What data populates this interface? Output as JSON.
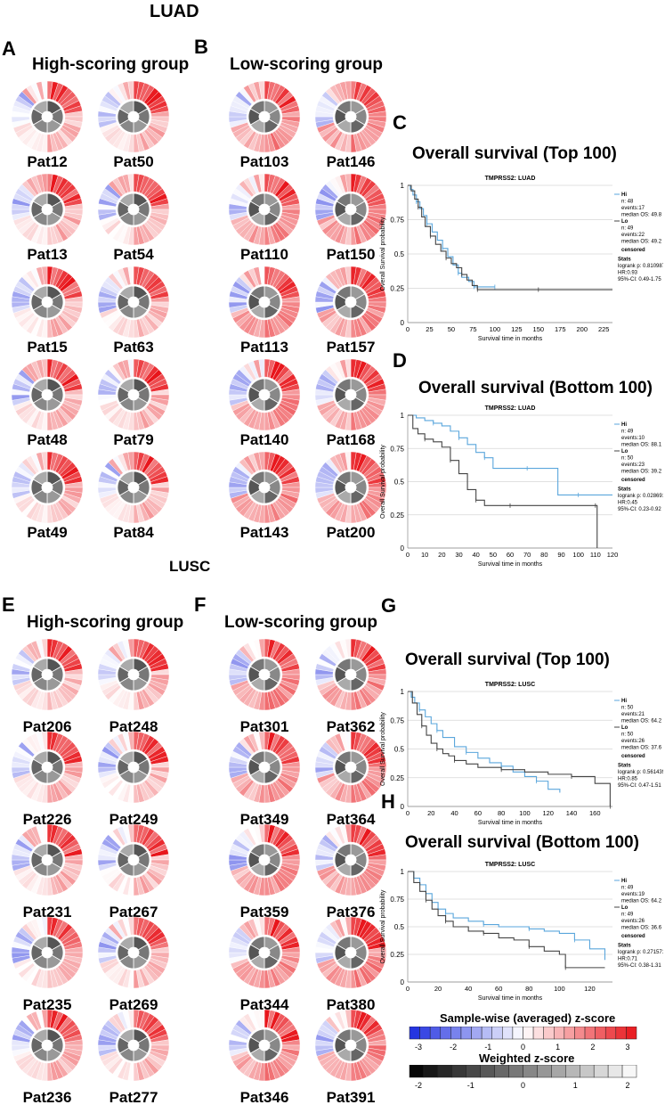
{
  "sections": [
    {
      "id": "luad",
      "title": "LUAD"
    },
    {
      "id": "lusc",
      "title": "LUSC"
    }
  ],
  "panels": {
    "A": {
      "letter": "A",
      "title": "High-scoring group",
      "patients": [
        "Pat12",
        "Pat50",
        "Pat13",
        "Pat54",
        "Pat15",
        "Pat63",
        "Pat48",
        "Pat79",
        "Pat49",
        "Pat84"
      ]
    },
    "B": {
      "letter": "B",
      "title": "Low-scoring group",
      "patients": [
        "Pat103",
        "Pat146",
        "Pat110",
        "Pat150",
        "Pat113",
        "Pat157",
        "Pat140",
        "Pat168",
        "Pat143",
        "Pat200"
      ]
    },
    "E": {
      "letter": "E",
      "title": "High-scoring group",
      "patients": [
        "Pat206",
        "Pat248",
        "Pat226",
        "Pat249",
        "Pat231",
        "Pat267",
        "Pat235",
        "Pat269",
        "Pat236",
        "Pat277"
      ]
    },
    "F": {
      "letter": "F",
      "title": "Low-scoring group",
      "patients": [
        "Pat301",
        "Pat362",
        "Pat349",
        "Pat364",
        "Pat359",
        "Pat376",
        "Pat344",
        "Pat380",
        "Pat346",
        "Pat391"
      ]
    }
  },
  "chart_data": [
    {
      "panel": "C",
      "type": "line",
      "title": "Overall survival  (Top 100)",
      "subtitle": "TMPRSS2: LUAD",
      "xlabel": "Survival time in months",
      "ylabel": "Overall Survival probability",
      "xlim": [
        0,
        235
      ],
      "ylim": [
        0,
        1
      ],
      "xticks": [
        0,
        25,
        50,
        75,
        100,
        125,
        150,
        175,
        200,
        225
      ],
      "yticks": [
        0,
        0.25,
        0.5,
        0.75,
        1
      ],
      "ytick_labels": [
        "0",
        "0.25",
        "0.5",
        "0.75",
        "1"
      ],
      "series": [
        {
          "name": "Hi",
          "color": "#5aa6dc",
          "x": [
            0,
            3,
            6,
            10,
            14,
            18,
            22,
            28,
            34,
            40,
            46,
            52,
            58,
            62,
            70,
            76,
            84,
            92,
            100
          ],
          "y": [
            1,
            0.97,
            0.93,
            0.88,
            0.83,
            0.78,
            0.72,
            0.66,
            0.6,
            0.54,
            0.48,
            0.42,
            0.36,
            0.33,
            0.3,
            0.26,
            0.26,
            0.26,
            0.26
          ]
        },
        {
          "name": "Lo",
          "color": "#444444",
          "x": [
            0,
            4,
            8,
            12,
            16,
            20,
            26,
            32,
            38,
            44,
            50,
            56,
            62,
            68,
            74,
            80,
            90,
            100,
            150,
            235
          ],
          "y": [
            1,
            0.96,
            0.9,
            0.84,
            0.77,
            0.7,
            0.63,
            0.57,
            0.52,
            0.47,
            0.43,
            0.4,
            0.35,
            0.31,
            0.27,
            0.24,
            0.24,
            0.24,
            0.24,
            0.24
          ]
        }
      ],
      "legend": {
        "hi_label": "Hi",
        "hi_n": "n: 48",
        "hi_events": "events:17",
        "hi_median": "median OS: 49.8",
        "lo_label": "Lo",
        "lo_n": "n: 49",
        "lo_events": "events:22",
        "lo_median": "median OS: 49.2",
        "censored": "censored",
        "stats_label": "Stats",
        "logrank": "logrank p: 0.8109878",
        "hr": "HR:0.93",
        "ci": "95%-CI: 0.49-1.75"
      }
    },
    {
      "panel": "D",
      "type": "line",
      "title": "Overall survival  (Bottom 100)",
      "subtitle": "TMPRSS2: LUAD",
      "xlabel": "Survival time in months",
      "ylabel": "Overall Survival probability",
      "xlim": [
        0,
        120
      ],
      "ylim": [
        0,
        1
      ],
      "xticks": [
        0,
        10,
        20,
        30,
        40,
        50,
        60,
        70,
        80,
        90,
        100,
        110,
        120
      ],
      "yticks": [
        0,
        0.25,
        0.5,
        0.75,
        1
      ],
      "ytick_labels": [
        "0",
        "0.25",
        "0.5",
        "0.75",
        "1"
      ],
      "series": [
        {
          "name": "Hi",
          "color": "#5aa6dc",
          "x": [
            0,
            5,
            10,
            15,
            20,
            25,
            30,
            35,
            40,
            45,
            50,
            60,
            70,
            80,
            88,
            100,
            120
          ],
          "y": [
            1,
            0.98,
            0.96,
            0.94,
            0.92,
            0.88,
            0.83,
            0.78,
            0.72,
            0.68,
            0.6,
            0.6,
            0.6,
            0.6,
            0.4,
            0.4,
            0.4
          ]
        },
        {
          "name": "Lo",
          "color": "#444444",
          "x": [
            0,
            3,
            6,
            10,
            15,
            20,
            25,
            30,
            35,
            40,
            45,
            50,
            60,
            80,
            100,
            110,
            111
          ],
          "y": [
            1,
            0.9,
            0.86,
            0.82,
            0.8,
            0.76,
            0.66,
            0.56,
            0.44,
            0.36,
            0.32,
            0.32,
            0.32,
            0.32,
            0.32,
            0.32,
            0
          ]
        }
      ],
      "legend": {
        "hi_label": "Hi",
        "hi_n": "n: 49",
        "hi_events": "events:10",
        "hi_median": "median OS: 88.1",
        "lo_label": "Lo",
        "lo_n": "n: 50",
        "lo_events": "events:23",
        "lo_median": "median OS: 39.2",
        "censored": "censored",
        "stats_label": "Stats",
        "logrank": "logrank p: 0.02869159",
        "hr": "HR:0.45",
        "ci": "95%-CI: 0.23-0.92"
      }
    },
    {
      "panel": "G",
      "type": "line",
      "title": "Overall survival (Top 100)",
      "subtitle": "TMPRSS2: LUSC",
      "xlabel": "Survival time in months",
      "ylabel": "Overall Survival probability",
      "xlim": [
        0,
        175
      ],
      "ylim": [
        0,
        1
      ],
      "xticks": [
        0,
        20,
        40,
        60,
        80,
        100,
        120,
        140,
        160
      ],
      "yticks": [
        0,
        0.25,
        0.5,
        0.75,
        1
      ],
      "ytick_labels": [
        "0",
        "0.25",
        "0.5",
        "0.75",
        "1"
      ],
      "series": [
        {
          "name": "Hi",
          "color": "#5aa6dc",
          "x": [
            0,
            3,
            6,
            10,
            15,
            20,
            25,
            30,
            40,
            50,
            60,
            70,
            80,
            90,
            100,
            110,
            120,
            130
          ],
          "y": [
            1,
            0.95,
            0.9,
            0.84,
            0.78,
            0.72,
            0.66,
            0.6,
            0.52,
            0.47,
            0.42,
            0.38,
            0.35,
            0.3,
            0.26,
            0.22,
            0.15,
            0.12
          ]
        },
        {
          "name": "Lo",
          "color": "#444444",
          "x": [
            0,
            4,
            8,
            12,
            16,
            20,
            25,
            30,
            35,
            40,
            50,
            60,
            80,
            100,
            120,
            140,
            160,
            172,
            173
          ],
          "y": [
            1,
            0.9,
            0.8,
            0.7,
            0.62,
            0.55,
            0.5,
            0.46,
            0.44,
            0.4,
            0.37,
            0.34,
            0.32,
            0.3,
            0.28,
            0.26,
            0.2,
            0.2,
            0
          ]
        }
      ],
      "legend": {
        "hi_label": "Hi",
        "hi_n": "n: 50",
        "hi_events": "events:21",
        "hi_median": "median OS: 64.2",
        "lo_label": "Lo",
        "lo_n": "n: 50",
        "lo_events": "events:26",
        "lo_median": "median OS: 37.6",
        "censored": "censored",
        "stats_label": "Stats",
        "logrank": "logrank p: 0.5614399",
        "hr": "HR:0.85",
        "ci": "95%-CI: 0.47-1.51"
      }
    },
    {
      "panel": "H",
      "type": "line",
      "title": "Overall survival (Bottom 100)",
      "subtitle": "TMPRSS2: LUSC",
      "xlabel": "Survival time in months",
      "ylabel": "Overall Survival probability",
      "xlim": [
        0,
        135
      ],
      "ylim": [
        0,
        1
      ],
      "xticks": [
        0,
        20,
        40,
        60,
        80,
        100,
        120
      ],
      "yticks": [
        0,
        0.25,
        0.5,
        0.75,
        1
      ],
      "ytick_labels": [
        "0",
        "0.25",
        "0.5",
        "0.75",
        "1"
      ],
      "series": [
        {
          "name": "Hi",
          "color": "#5aa6dc",
          "x": [
            0,
            4,
            8,
            12,
            16,
            20,
            25,
            30,
            40,
            50,
            60,
            70,
            80,
            90,
            100,
            110,
            120,
            130
          ],
          "y": [
            1,
            0.94,
            0.88,
            0.8,
            0.72,
            0.66,
            0.62,
            0.58,
            0.55,
            0.52,
            0.5,
            0.5,
            0.48,
            0.46,
            0.44,
            0.38,
            0.3,
            0.2
          ]
        },
        {
          "name": "Lo",
          "color": "#444444",
          "x": [
            0,
            4,
            8,
            12,
            16,
            20,
            25,
            30,
            40,
            50,
            60,
            70,
            80,
            90,
            100,
            104,
            130
          ],
          "y": [
            1,
            0.9,
            0.82,
            0.74,
            0.66,
            0.6,
            0.55,
            0.5,
            0.46,
            0.44,
            0.4,
            0.38,
            0.32,
            0.28,
            0.25,
            0.13,
            0.13
          ]
        }
      ],
      "legend": {
        "hi_label": "Hi",
        "hi_n": "n: 49",
        "hi_events": "events:19",
        "hi_median": "median OS: 64.2",
        "lo_label": "Lo",
        "lo_n": "n: 49",
        "lo_events": "events:26",
        "lo_median": "median OS: 36.6",
        "censored": "censored",
        "stats_label": "Stats",
        "logrank": "logrank p: 0.2715717",
        "hr": "HR:0.71",
        "ci": "95%-CI: 0.38-1.31"
      }
    }
  ],
  "colorscales": {
    "sample": {
      "title": "Sample-wise (averaged) z-score",
      "min": -3,
      "max": 3,
      "ticks": [
        "-3",
        "-2",
        "-1",
        "0",
        "1",
        "2",
        "3"
      ],
      "low_color": "#1b2be0",
      "mid_color": "#ffffff",
      "high_color": "#e8141a"
    },
    "weighted": {
      "title": "Weighted z-score",
      "min": -2,
      "max": 2,
      "ticks": [
        "-2",
        "-1",
        "0",
        "1",
        "2"
      ],
      "low_color": "#000000",
      "high_color": "#ffffff"
    }
  }
}
